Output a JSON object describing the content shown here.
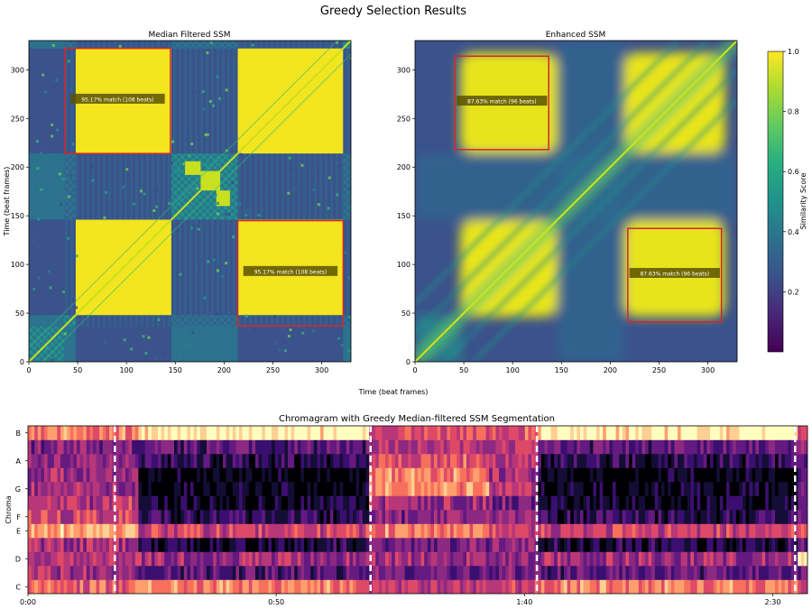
{
  "figure_title": "Greedy Selection Results",
  "shared_xlabel": "Time (beat frames)",
  "colorbar": {
    "label": "Similarity Score",
    "ticks": [
      "0.2",
      "0.4",
      "0.6",
      "0.8",
      "1.0"
    ],
    "tick_values": [
      0.2,
      0.4,
      0.6,
      0.8,
      1.0
    ],
    "range": [
      0.0,
      1.0
    ],
    "colormap": "viridis"
  },
  "chart_data": [
    {
      "type": "heatmap",
      "title": "Median Filtered SSM",
      "ylabel": "Time (beat frames)",
      "xlabel": "",
      "xlim": [
        0,
        330
      ],
      "ylim": [
        0,
        330
      ],
      "xticks": [
        "0",
        "50",
        "100",
        "150",
        "200",
        "250",
        "300"
      ],
      "xtick_values": [
        0,
        50,
        100,
        150,
        200,
        250,
        300
      ],
      "yticks": [
        "0",
        "50",
        "100",
        "150",
        "200",
        "250",
        "300"
      ],
      "ytick_values": [
        0,
        50,
        100,
        150,
        200,
        250,
        300
      ],
      "segments_beats": [
        [
          0,
          36
        ],
        [
          36,
          48
        ],
        [
          48,
          146
        ],
        [
          146,
          214
        ],
        [
          214,
          322
        ],
        [
          322,
          330
        ]
      ],
      "boxes": [
        {
          "x0": 37,
          "x1": 145,
          "y0": 214,
          "y1": 322,
          "label": "95.17% match (108 beats)"
        },
        {
          "x0": 214,
          "x1": 322,
          "y0": 37,
          "y1": 145,
          "label": "95.17% match (108 beats)"
        }
      ],
      "box_color": "#d62728"
    },
    {
      "type": "heatmap",
      "title": "Enhanced SSM",
      "ylabel": "",
      "xlabel": "",
      "xlim": [
        0,
        330
      ],
      "ylim": [
        0,
        330
      ],
      "xticks": [
        "0",
        "50",
        "100",
        "150",
        "200",
        "250",
        "300"
      ],
      "xtick_values": [
        0,
        50,
        100,
        150,
        200,
        250,
        300
      ],
      "yticks": [
        "0",
        "50",
        "100",
        "150",
        "200",
        "250",
        "300"
      ],
      "ytick_values": [
        0,
        50,
        100,
        150,
        200,
        250,
        300
      ],
      "boxes": [
        {
          "x0": 41,
          "x1": 137,
          "y0": 218,
          "y1": 314,
          "label": "87.63% match (96 beats)"
        },
        {
          "x0": 218,
          "x1": 314,
          "y0": 41,
          "y1": 137,
          "label": "87.63% match (96 beats)"
        }
      ],
      "box_color": "#d62728"
    },
    {
      "type": "heatmap",
      "title": "Chromagram with Greedy Median-filtered SSM Segmentation",
      "ylabel": "Chroma",
      "xlabel": "",
      "colormap": "magma",
      "pitch_rows": [
        "C",
        "C#",
        "D",
        "D#",
        "E",
        "F",
        "F#",
        "G",
        "G#",
        "A",
        "A#",
        "B"
      ],
      "yticks": [
        "C",
        "D",
        "E",
        "F",
        "G",
        "A",
        "B"
      ],
      "ytick_rows": [
        0,
        2,
        4,
        5,
        7,
        9,
        11
      ],
      "xlim_seconds": [
        0,
        157
      ],
      "xticks": [
        "0:00",
        "0:50",
        "1:40",
        "2:30"
      ],
      "xtick_seconds": [
        0,
        50,
        100,
        150
      ],
      "boundaries_seconds": [
        17.5,
        69.0,
        102.5,
        154.5
      ]
    }
  ]
}
